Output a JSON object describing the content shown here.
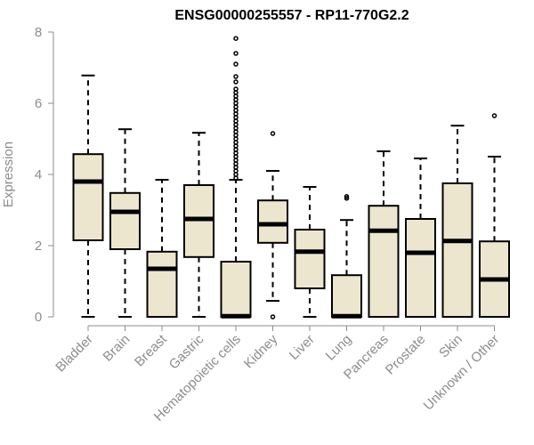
{
  "chart_data": {
    "type": "boxplot",
    "title": "ENSG00000255557 - RP11-770G2.2",
    "ylabel": "Expression",
    "ylim": [
      0,
      8
    ],
    "yticks": [
      0,
      2,
      4,
      6,
      8
    ],
    "box_fill": "#ede6cf",
    "categories": [
      "Bladder",
      "Brain",
      "Breast",
      "Gastric",
      "Hematopoietic cells",
      "Kidney",
      "Liver",
      "Lung",
      "Pancreas",
      "Prostate",
      "Skin",
      "Unknown / Other"
    ],
    "boxes": [
      {
        "label": "Bladder",
        "min": 0,
        "q1": 2.15,
        "median": 3.8,
        "q3": 4.57,
        "max": 6.78,
        "outliers": []
      },
      {
        "label": "Brain",
        "min": 0,
        "q1": 1.9,
        "median": 2.95,
        "q3": 3.48,
        "max": 5.27,
        "outliers": []
      },
      {
        "label": "Breast",
        "min": 0,
        "q1": 0,
        "median": 1.35,
        "q3": 1.83,
        "max": 3.85,
        "outliers": []
      },
      {
        "label": "Gastric",
        "min": 0,
        "q1": 1.68,
        "median": 2.75,
        "q3": 3.7,
        "max": 5.17,
        "outliers": []
      },
      {
        "label": "Hematopoietic cells",
        "min": 0,
        "q1": 0,
        "median": 0.02,
        "q3": 1.55,
        "max": 3.85,
        "outliers": [
          3.9,
          4.0,
          4.1,
          4.2,
          4.3,
          4.4,
          4.5,
          4.6,
          4.7,
          4.8,
          4.9,
          5.0,
          5.1,
          5.2,
          5.3,
          5.4,
          5.5,
          5.6,
          5.7,
          5.8,
          5.9,
          6.0,
          6.1,
          6.2,
          6.3,
          6.4,
          6.6,
          6.75,
          7.1,
          7.4,
          7.82
        ]
      },
      {
        "label": "Kidney",
        "min": 0.45,
        "q1": 2.08,
        "median": 2.6,
        "q3": 3.27,
        "max": 4.1,
        "outliers": [
          0,
          5.15
        ]
      },
      {
        "label": "Liver",
        "min": 0,
        "q1": 0.8,
        "median": 1.83,
        "q3": 2.45,
        "max": 3.65,
        "outliers": []
      },
      {
        "label": "Lung",
        "min": 0,
        "q1": 0,
        "median": 0.02,
        "q3": 1.17,
        "max": 2.72,
        "outliers": [
          3.33,
          3.38
        ]
      },
      {
        "label": "Pancreas",
        "min": 0,
        "q1": 0,
        "median": 2.42,
        "q3": 3.12,
        "max": 4.65,
        "outliers": []
      },
      {
        "label": "Prostate",
        "min": 0,
        "q1": 0,
        "median": 1.8,
        "q3": 2.75,
        "max": 4.45,
        "outliers": []
      },
      {
        "label": "Skin",
        "min": 0,
        "q1": 0,
        "median": 2.13,
        "q3": 3.75,
        "max": 5.37,
        "outliers": []
      },
      {
        "label": "Unknown / Other",
        "min": 0,
        "q1": 0,
        "median": 1.05,
        "q3": 2.12,
        "max": 4.5,
        "outliers": [
          5.65
        ]
      }
    ]
  }
}
